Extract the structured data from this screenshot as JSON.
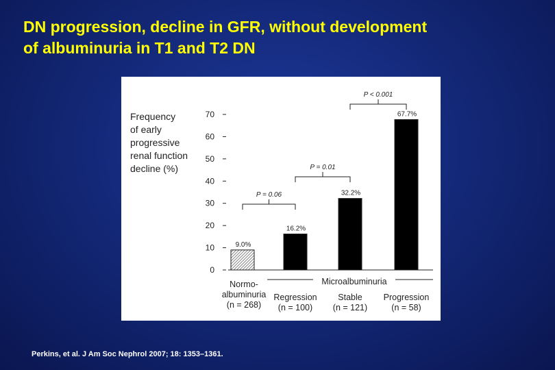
{
  "slide": {
    "title_line1": "DN progression, decline in GFR, without development",
    "title_line2": "of albuminuria in T1 and T2 DN",
    "citation": "Perkins, et al. J Am Soc Nephrol 2007; 18: 1353–1361."
  },
  "colors": {
    "background": "#14297a",
    "title": "#ffff00",
    "bar_fill": "#000000",
    "hatched_bar": "#888888"
  },
  "chart_data": {
    "type": "bar",
    "title": "",
    "ylabel_lines": [
      "Frequency",
      "of early",
      "progressive",
      "renal function",
      "decline (%)"
    ],
    "ylim": [
      0,
      70
    ],
    "yticks": [
      0,
      10,
      20,
      30,
      40,
      50,
      60,
      70
    ],
    "categories": [
      {
        "label_lines": [
          "Normo-",
          "albuminuria",
          "(n = 268)"
        ],
        "value": 9.0,
        "value_label": "9.0%",
        "pattern": "hatched"
      },
      {
        "label_lines": [
          "Regression",
          "(n = 100)"
        ],
        "value": 16.2,
        "value_label": "16.2%",
        "pattern": "solid"
      },
      {
        "label_lines": [
          "Stable",
          "(n = 121)"
        ],
        "value": 32.2,
        "value_label": "32.2%",
        "pattern": "solid"
      },
      {
        "label_lines": [
          "Progression",
          "(n = 58)"
        ],
        "value": 67.7,
        "value_label": "67.7%",
        "pattern": "solid"
      }
    ],
    "group_label": "Microalbuminuria",
    "comparisons": [
      {
        "from": 0,
        "to": 1,
        "label": "P = 0.06"
      },
      {
        "from": 1,
        "to": 2,
        "label": "P = 0.01"
      },
      {
        "from": 2,
        "to": 3,
        "label": "P < 0.001"
      }
    ],
    "grid": false,
    "legend": "none"
  }
}
